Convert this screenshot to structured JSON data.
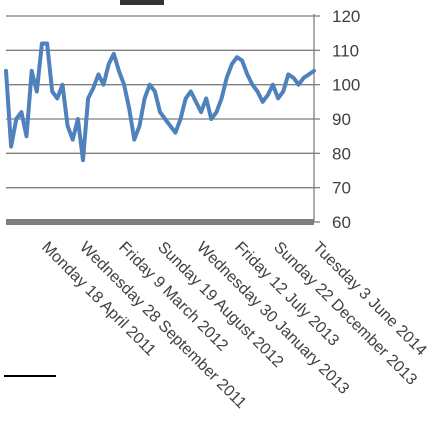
{
  "chart_data": {
    "type": "line",
    "title": "",
    "xlabel": "",
    "ylabel": "",
    "ylim": [
      60,
      120
    ],
    "yticks": [
      60,
      70,
      80,
      90,
      100,
      110,
      120
    ],
    "grid": true,
    "legend": "none",
    "xtick_labels": [
      "Monday 18 April 2011",
      "Wednesday 28 September 2011",
      "Friday 9 March 2012",
      "Sunday 19 August 2012",
      "Wednesday 30 January 2013",
      "Friday 12 July 2013",
      "Sunday 22 December 2013",
      "Tuesday 3 June 2014"
    ],
    "series_color": "#4f81bd",
    "series": [
      {
        "x": [
          "2011-01-03",
          "2011-01-24",
          "2011-02-14",
          "2011-03-07",
          "2011-03-28",
          "2011-04-18",
          "2011-05-09",
          "2011-05-30",
          "2011-06-20",
          "2011-07-11",
          "2011-08-01",
          "2011-08-22",
          "2011-09-12",
          "2011-10-03",
          "2011-10-24",
          "2011-11-14",
          "2011-12-05",
          "2011-12-26",
          "2012-01-16",
          "2012-02-06",
          "2012-02-27",
          "2012-03-19",
          "2012-04-09",
          "2012-04-30",
          "2012-05-21",
          "2012-06-11",
          "2012-07-02",
          "2012-07-23",
          "2012-08-13",
          "2012-09-03",
          "2012-09-24",
          "2012-10-15",
          "2012-11-05",
          "2012-11-26",
          "2012-12-17",
          "2013-01-07",
          "2013-01-28",
          "2013-02-18",
          "2013-03-11",
          "2013-04-01",
          "2013-04-22",
          "2013-05-13",
          "2013-06-03",
          "2013-06-24",
          "2013-07-15",
          "2013-08-05",
          "2013-08-26",
          "2013-09-16",
          "2013-10-07",
          "2013-10-28",
          "2013-11-18",
          "2013-12-09",
          "2013-12-30",
          "2014-01-20",
          "2014-02-10",
          "2014-03-03",
          "2014-03-24",
          "2014-04-14",
          "2014-05-05",
          "2014-05-26",
          "2014-06-16"
        ],
        "values": [
          104,
          82,
          90,
          92,
          85,
          104,
          98,
          112,
          112,
          98,
          96,
          100,
          88,
          84,
          90,
          78,
          96,
          99,
          103,
          100,
          106,
          109,
          104,
          100,
          93,
          84,
          88,
          96,
          100,
          98,
          92,
          90,
          88,
          86,
          90,
          96,
          98,
          95,
          92,
          96,
          90,
          92,
          96,
          102,
          106,
          108,
          107,
          103,
          100,
          98,
          95,
          97,
          100,
          96,
          98,
          103,
          102,
          100,
          102,
          103,
          104
        ]
      }
    ]
  }
}
